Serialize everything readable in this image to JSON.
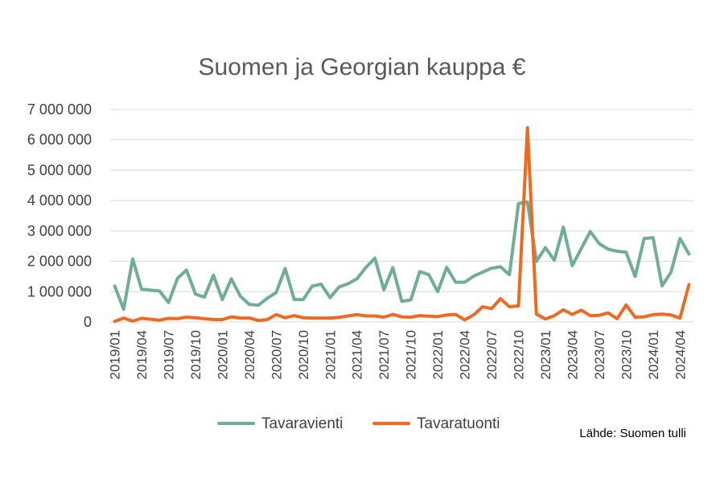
{
  "chart_data": {
    "type": "line",
    "title": "Suomen ja Georgian kauppa €",
    "source": "Lähde: Suomen tulli",
    "ylim": [
      0,
      7000000
    ],
    "yticks": [
      0,
      1000000,
      2000000,
      3000000,
      4000000,
      5000000,
      6000000,
      7000000
    ],
    "ytick_labels": [
      "0",
      "1 000 000",
      "2 000 000",
      "3 000 000",
      "4 000 000",
      "5 000 000",
      "6 000 000",
      "7 000 000"
    ],
    "grid": true,
    "legend_position": "bottom",
    "x": [
      "2019/01",
      "2019/02",
      "2019/03",
      "2019/04",
      "2019/05",
      "2019/06",
      "2019/07",
      "2019/08",
      "2019/09",
      "2019/10",
      "2019/11",
      "2019/12",
      "2020/01",
      "2020/02",
      "2020/03",
      "2020/04",
      "2020/05",
      "2020/06",
      "2020/07",
      "2020/08",
      "2020/09",
      "2020/10",
      "2020/11",
      "2020/12",
      "2021/01",
      "2021/02",
      "2021/03",
      "2021/04",
      "2021/05",
      "2021/06",
      "2021/07",
      "2021/08",
      "2021/09",
      "2021/10",
      "2021/11",
      "2021/12",
      "2022/01",
      "2022/02",
      "2022/03",
      "2022/04",
      "2022/05",
      "2022/06",
      "2022/07",
      "2022/08",
      "2022/09",
      "2022/10",
      "2022/11",
      "2022/12",
      "2023/01",
      "2023/02",
      "2023/03",
      "2023/04",
      "2023/05",
      "2023/06",
      "2023/07",
      "2023/08",
      "2023/09",
      "2023/10",
      "2023/11",
      "2023/12",
      "2024/01",
      "2024/02",
      "2024/03",
      "2024/04",
      "2024/05"
    ],
    "x_labels_shown": [
      "2019/01",
      "2019/04",
      "2019/07",
      "2019/10",
      "2020/01",
      "2020/04",
      "2020/07",
      "2020/10",
      "2021/01",
      "2021/04",
      "2021/07",
      "2021/10",
      "2022/01",
      "2022/04",
      "2022/07",
      "2022/10",
      "2023/01",
      "2023/04",
      "2023/07",
      "2023/10",
      "2024/01",
      "2024/04"
    ],
    "series": [
      {
        "name": "Tavaravienti",
        "color": "#70ad97",
        "values": [
          1180000,
          420000,
          2080000,
          1080000,
          1050000,
          1020000,
          640000,
          1440000,
          1710000,
          920000,
          820000,
          1540000,
          740000,
          1420000,
          850000,
          580000,
          550000,
          780000,
          970000,
          1760000,
          740000,
          740000,
          1180000,
          1250000,
          800000,
          1150000,
          1260000,
          1420000,
          1800000,
          2100000,
          1060000,
          1790000,
          680000,
          730000,
          1660000,
          1560000,
          1000000,
          1800000,
          1310000,
          1310000,
          1510000,
          1640000,
          1770000,
          1820000,
          1560000,
          3900000,
          3950000,
          2000000,
          2450000,
          2030000,
          3120000,
          1860000,
          2420000,
          2980000,
          2580000,
          2400000,
          2330000,
          2300000,
          1500000,
          2750000,
          2780000,
          1190000,
          1640000,
          2750000,
          2240000
        ]
      },
      {
        "name": "Tavaratuonti",
        "color": "#ed6a24",
        "values": [
          20000,
          130000,
          30000,
          120000,
          90000,
          60000,
          120000,
          110000,
          160000,
          140000,
          110000,
          80000,
          80000,
          170000,
          130000,
          130000,
          50000,
          80000,
          240000,
          140000,
          210000,
          140000,
          130000,
          130000,
          130000,
          150000,
          200000,
          240000,
          200000,
          200000,
          160000,
          250000,
          170000,
          160000,
          210000,
          190000,
          180000,
          230000,
          250000,
          70000,
          230000,
          500000,
          440000,
          770000,
          500000,
          530000,
          6400000,
          260000,
          100000,
          210000,
          400000,
          250000,
          390000,
          210000,
          220000,
          300000,
          110000,
          560000,
          160000,
          170000,
          240000,
          260000,
          230000,
          130000,
          1230000
        ]
      }
    ]
  }
}
